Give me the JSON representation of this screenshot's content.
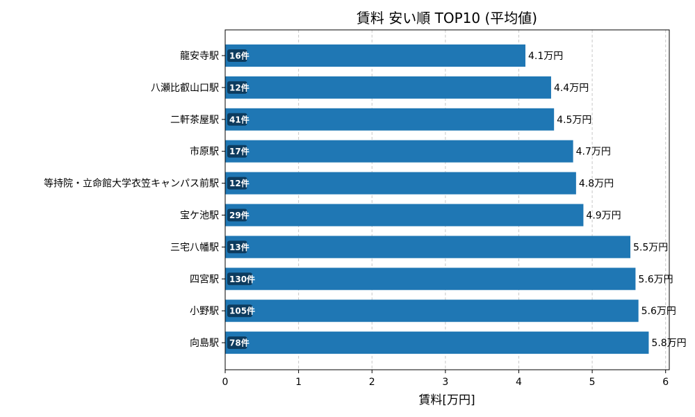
{
  "chart_data": {
    "type": "bar",
    "orientation": "horizontal",
    "title": "賃料 安い順 TOP10 (平均値)",
    "xlabel": "賃料[万円]",
    "ylabel": "",
    "xlim": [
      0,
      6.05
    ],
    "xticks": [
      "0",
      "1",
      "2",
      "3",
      "4",
      "5",
      "6"
    ],
    "grid": "x-dashed",
    "bar_color": "#1f77b4",
    "badge_color": "#0d3b5e",
    "categories": [
      "龍安寺駅",
      "八瀬比叡山口駅",
      "二軒茶屋駅",
      "市原駅",
      "等持院・立命館大学衣笠キャンパス前駅",
      "宝ケ池駅",
      "三宅八幡駅",
      "四宮駅",
      "小野駅",
      "向島駅"
    ],
    "values": [
      4.09,
      4.44,
      4.48,
      4.74,
      4.78,
      4.88,
      5.52,
      5.59,
      5.63,
      5.77
    ],
    "value_labels": [
      "4.1万円",
      "4.4万円",
      "4.5万円",
      "4.7万円",
      "4.8万円",
      "4.9万円",
      "5.5万円",
      "5.6万円",
      "5.6万円",
      "5.8万円"
    ],
    "counts": [
      "16件",
      "12件",
      "41件",
      "17件",
      "12件",
      "29件",
      "13件",
      "130件",
      "105件",
      "78件"
    ]
  }
}
